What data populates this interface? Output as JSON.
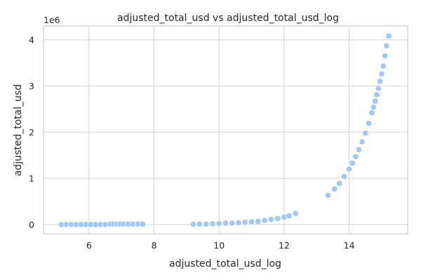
{
  "chart_data": {
    "type": "scatter",
    "title": "adjusted_total_usd vs adjusted_total_usd_log",
    "xlabel": "adjusted_total_usd_log",
    "ylabel": "adjusted_total_usd",
    "y_offset_label": "1e6",
    "xlim": [
      4.6,
      15.8
    ],
    "ylim": [
      -0.2,
      4.3
    ],
    "xticks": [
      6,
      8,
      10,
      12,
      14
    ],
    "yticks": [
      0,
      1,
      2,
      3,
      4
    ],
    "x_tick_labels": [
      "6",
      "8",
      "10",
      "12",
      "14"
    ],
    "y_tick_labels": [
      "0",
      "1",
      "2",
      "3",
      "4"
    ],
    "grid": true,
    "point_color": "#a1c9f4",
    "series": [
      {
        "x": [
          5.15,
          5.3,
          5.45,
          5.6,
          5.75,
          5.9,
          6.05,
          6.2,
          6.35,
          6.5,
          6.65,
          6.75,
          6.85,
          6.95,
          7.05,
          7.2,
          7.35,
          7.5,
          7.65,
          9.2,
          9.4,
          9.6,
          9.8,
          10.0,
          10.2,
          10.4,
          10.6,
          10.8,
          11.0,
          11.2,
          11.4,
          11.6,
          11.8,
          12.0,
          12.15,
          12.35,
          13.35,
          13.55,
          13.7,
          13.85,
          14.0,
          14.1,
          14.2,
          14.3,
          14.4,
          14.5,
          14.6,
          14.7,
          14.75,
          14.8,
          14.85,
          14.9,
          14.95,
          15.0,
          15.05,
          15.1,
          15.15,
          15.22
        ],
        "y": [
          0.0,
          0.0,
          0.0,
          0.0,
          0.0,
          0.0,
          0.0,
          0.0,
          0.0,
          0.0,
          0.01,
          0.01,
          0.01,
          0.01,
          0.01,
          0.01,
          0.01,
          0.01,
          0.01,
          0.01,
          0.01,
          0.01,
          0.02,
          0.02,
          0.03,
          0.03,
          0.04,
          0.05,
          0.06,
          0.07,
          0.09,
          0.11,
          0.13,
          0.16,
          0.19,
          0.24,
          0.63,
          0.77,
          0.89,
          1.04,
          1.2,
          1.33,
          1.47,
          1.62,
          1.79,
          1.98,
          2.19,
          2.42,
          2.54,
          2.67,
          2.81,
          2.95,
          3.1,
          3.26,
          3.43,
          3.65,
          3.87,
          4.08
        ]
      }
    ]
  }
}
